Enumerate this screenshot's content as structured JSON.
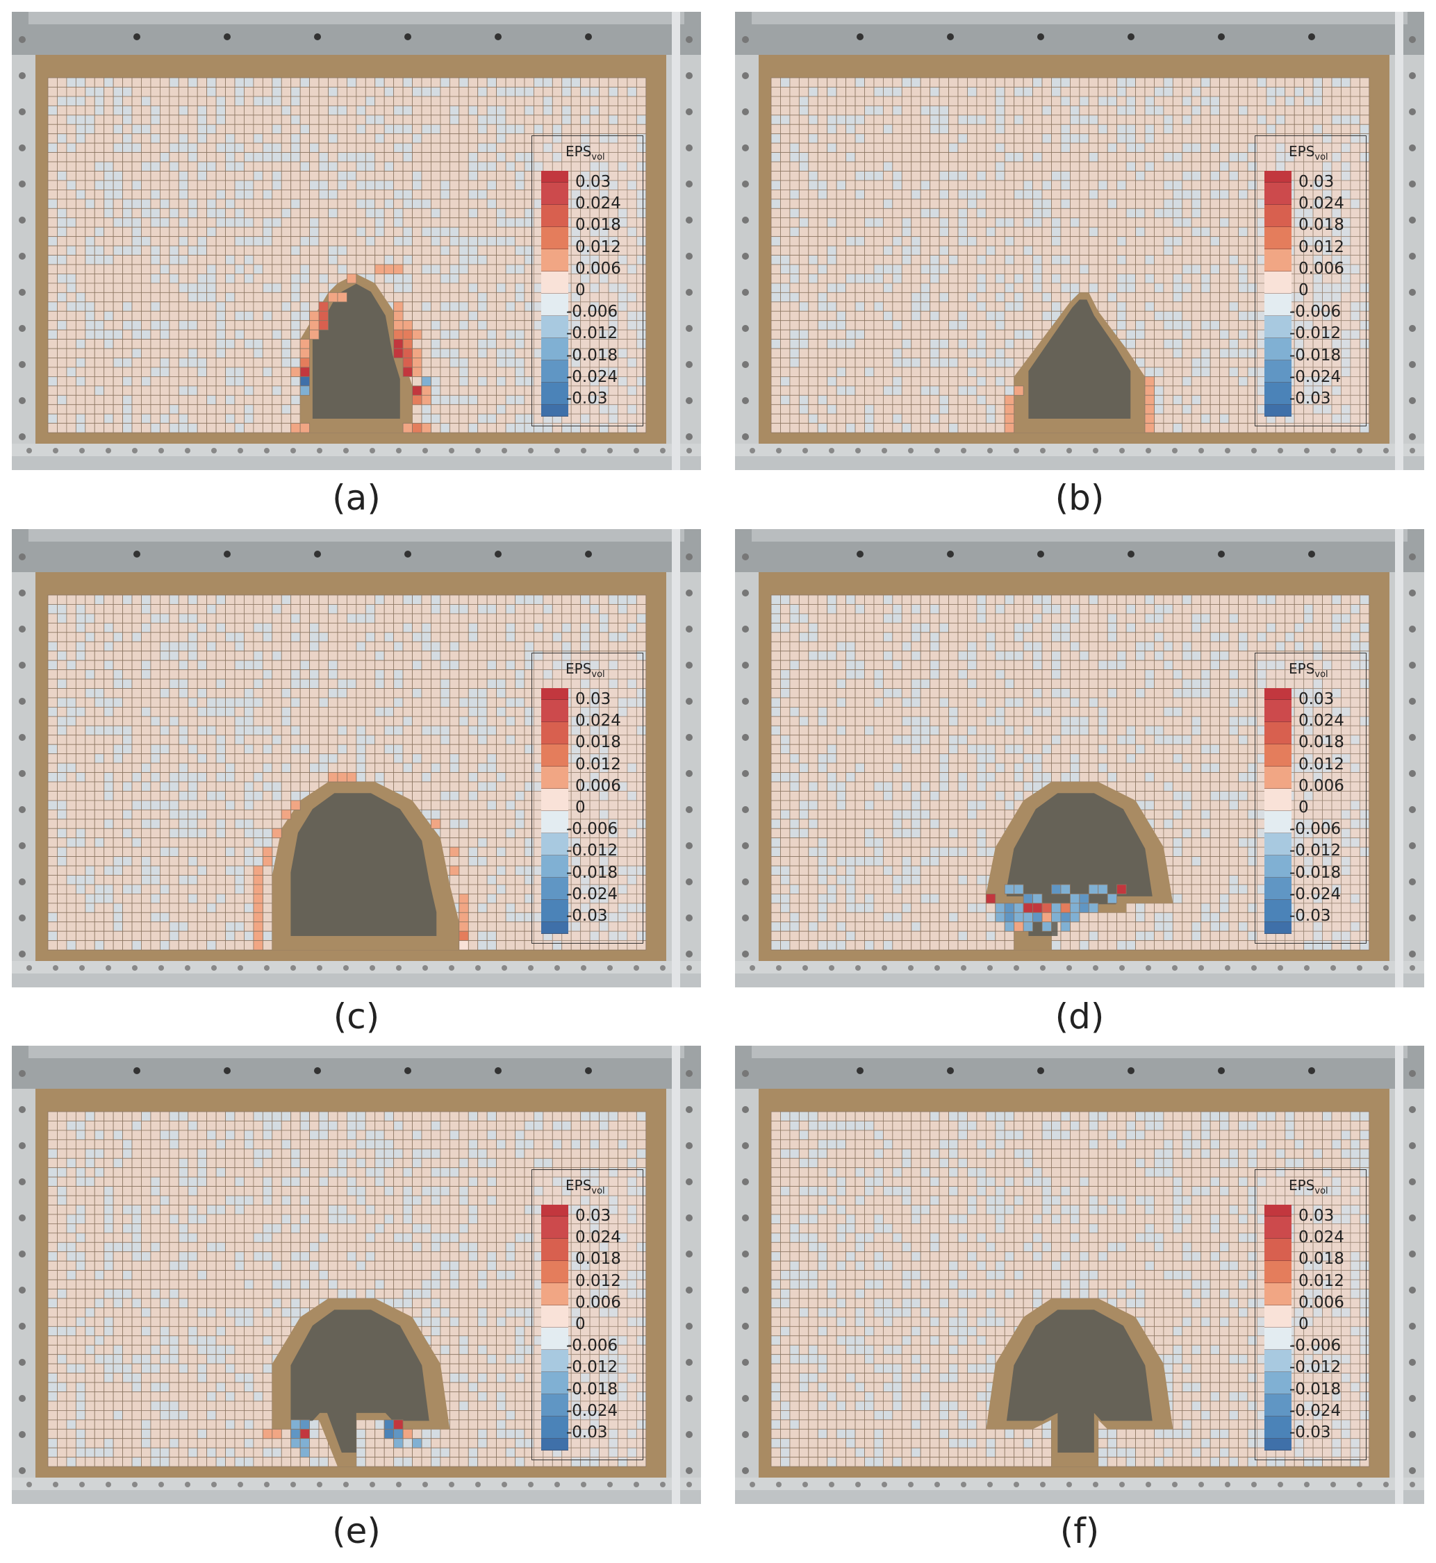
{
  "panels": [
    {
      "label": "(a)"
    },
    {
      "label": "(b)"
    },
    {
      "label": "(c)"
    },
    {
      "label": "(d)"
    },
    {
      "label": "(e)"
    },
    {
      "label": "(f)"
    }
  ],
  "legend": {
    "title": "EPS",
    "title_sub": "vol",
    "ticks": [
      "0.03",
      "0.024",
      "0.018",
      "0.012",
      "0.006",
      "0",
      "-0.006",
      "-0.012",
      "-0.018",
      "-0.024",
      "-0.03"
    ],
    "colors": [
      "#c2373e",
      "#cc4a4c",
      "#d8604f",
      "#e47d5c",
      "#f1a684",
      "#f9e2d8",
      "#e3ecf1",
      "#a8c9e0",
      "#80b0d3",
      "#6096c4",
      "#4b83b8",
      "#3f70a9"
    ]
  },
  "chart_data": {
    "type": "heatmap",
    "title": "",
    "colorbar": {
      "label": "EPS_vol",
      "ticks": [
        0.03,
        0.024,
        0.018,
        0.012,
        0.006,
        0,
        -0.006,
        -0.012,
        -0.018,
        -0.024,
        -0.03
      ],
      "range": [
        -0.03,
        0.03
      ]
    },
    "background_colors": {
      "positive_small": "#ead4c7",
      "negative_small": "#d4dce2",
      "sand": "#a98b63",
      "cavity": "#5b5a55"
    },
    "panels": [
      {
        "label": "(a)",
        "cells": [
          [
            35,
            20,
            0.012
          ],
          [
            36,
            20,
            0.012
          ],
          [
            37,
            20,
            0.012
          ],
          [
            32,
            21,
            0.012
          ],
          [
            30,
            23,
            0.012
          ],
          [
            31,
            23,
            0.012
          ],
          [
            29,
            24,
            0.024
          ],
          [
            29,
            25,
            0.024
          ],
          [
            28,
            25,
            0.012
          ],
          [
            29,
            26,
            0.024
          ],
          [
            28,
            26,
            0.012
          ],
          [
            28,
            27,
            0.012
          ],
          [
            27,
            28,
            0.012
          ],
          [
            27,
            29,
            0.012
          ],
          [
            27,
            30,
            0.018
          ],
          [
            27,
            31,
            0.03
          ],
          [
            26,
            31,
            0.012
          ],
          [
            27,
            32,
            -0.03
          ],
          [
            27,
            33,
            -0.012
          ],
          [
            37,
            24,
            0.012
          ],
          [
            37,
            25,
            0.012
          ],
          [
            37,
            26,
            0.012
          ],
          [
            38,
            26,
            0.012
          ],
          [
            37,
            27,
            0.018
          ],
          [
            38,
            27,
            0.018
          ],
          [
            39,
            27,
            0.012
          ],
          [
            37,
            28,
            0.03
          ],
          [
            38,
            28,
            0.018
          ],
          [
            37,
            29,
            0.03
          ],
          [
            38,
            29,
            0.024
          ],
          [
            39,
            29,
            0.012
          ],
          [
            38,
            30,
            0.024
          ],
          [
            39,
            30,
            0.012
          ],
          [
            38,
            31,
            0.03
          ],
          [
            39,
            31,
            0.012
          ],
          [
            40,
            32,
            -0.012
          ],
          [
            39,
            33,
            0.03
          ],
          [
            40,
            33,
            0.012
          ],
          [
            39,
            34,
            0.018
          ],
          [
            40,
            34,
            0.012
          ],
          [
            38,
            37,
            0.012
          ],
          [
            39,
            37,
            0.018
          ],
          [
            40,
            37,
            0.012
          ],
          [
            26,
            37,
            0.012
          ],
          [
            27,
            37,
            0.012
          ]
        ]
      },
      {
        "label": "(b)",
        "cells": [
          [
            25,
            34,
            0.012
          ],
          [
            25,
            35,
            0.012
          ],
          [
            25,
            36,
            0.012
          ],
          [
            25,
            37,
            0.012
          ],
          [
            26,
            33,
            0.012
          ],
          [
            40,
            32,
            0.012
          ],
          [
            40,
            33,
            0.012
          ],
          [
            40,
            34,
            0.012
          ],
          [
            40,
            35,
            0.012
          ],
          [
            40,
            36,
            0.012
          ],
          [
            40,
            37,
            0.012
          ]
        ]
      },
      {
        "label": "(c)",
        "cells": [
          [
            30,
            19,
            0.012
          ],
          [
            31,
            19,
            0.012
          ],
          [
            32,
            19,
            0.012
          ],
          [
            26,
            22,
            0.012
          ],
          [
            25,
            23,
            0.012
          ],
          [
            24,
            25,
            0.012
          ],
          [
            23,
            27,
            0.012
          ],
          [
            23,
            28,
            0.012
          ],
          [
            22,
            29,
            0.012
          ],
          [
            22,
            30,
            0.012
          ],
          [
            22,
            31,
            0.012
          ],
          [
            22,
            32,
            0.012
          ],
          [
            22,
            33,
            0.012
          ],
          [
            22,
            34,
            0.012
          ],
          [
            22,
            35,
            0.012
          ],
          [
            22,
            36,
            0.012
          ],
          [
            22,
            37,
            0.012
          ],
          [
            41,
            24,
            0.012
          ],
          [
            43,
            27,
            0.012
          ],
          [
            43,
            29,
            0.012
          ],
          [
            44,
            32,
            0.012
          ],
          [
            44,
            33,
            0.012
          ],
          [
            44,
            34,
            0.012
          ],
          [
            44,
            35,
            0.012
          ],
          [
            44,
            36,
            0.018
          ],
          [
            44,
            37,
            0.006
          ]
        ]
      },
      {
        "label": "(d)",
        "cells": [
          [
            23,
            32,
            0.03
          ],
          [
            25,
            31,
            -0.012
          ],
          [
            26,
            31,
            -0.012
          ],
          [
            27,
            32,
            -0.018
          ],
          [
            28,
            32,
            -0.012
          ],
          [
            30,
            31,
            -0.018
          ],
          [
            31,
            31,
            -0.012
          ],
          [
            32,
            32,
            -0.012
          ],
          [
            33,
            32,
            -0.018
          ],
          [
            34,
            31,
            -0.012
          ],
          [
            35,
            31,
            -0.012
          ],
          [
            36,
            32,
            -0.012
          ],
          [
            37,
            31,
            0.03
          ],
          [
            24,
            33,
            -0.012
          ],
          [
            25,
            33,
            -0.018
          ],
          [
            26,
            33,
            -0.012
          ],
          [
            27,
            33,
            0.03
          ],
          [
            28,
            33,
            0.03
          ],
          [
            29,
            33,
            0.024
          ],
          [
            30,
            33,
            -0.012
          ],
          [
            31,
            33,
            0.018
          ],
          [
            32,
            33,
            -0.012
          ],
          [
            33,
            33,
            -0.018
          ],
          [
            34,
            33,
            -0.012
          ],
          [
            24,
            34,
            -0.012
          ],
          [
            25,
            34,
            -0.018
          ],
          [
            26,
            34,
            -0.012
          ],
          [
            27,
            34,
            -0.012
          ],
          [
            28,
            34,
            -0.018
          ],
          [
            29,
            34,
            0.012
          ],
          [
            30,
            34,
            -0.012
          ],
          [
            31,
            34,
            -0.018
          ],
          [
            32,
            34,
            -0.012
          ],
          [
            25,
            35,
            -0.012
          ],
          [
            26,
            35,
            0.012
          ],
          [
            27,
            35,
            -0.012
          ],
          [
            29,
            35,
            -0.012
          ],
          [
            31,
            35,
            -0.012
          ]
        ]
      },
      {
        "label": "(e)",
        "cells": [
          [
            23,
            34,
            0.012
          ],
          [
            24,
            34,
            0.012
          ],
          [
            26,
            33,
            -0.012
          ],
          [
            26,
            34,
            -0.018
          ],
          [
            27,
            33,
            -0.018
          ],
          [
            27,
            34,
            0.03
          ],
          [
            26,
            35,
            -0.012
          ],
          [
            27,
            35,
            -0.012
          ],
          [
            27,
            36,
            -0.012
          ],
          [
            36,
            33,
            -0.024
          ],
          [
            37,
            33,
            0.03
          ],
          [
            36,
            34,
            -0.024
          ],
          [
            37,
            34,
            -0.018
          ],
          [
            38,
            34,
            0.012
          ],
          [
            37,
            35,
            -0.012
          ],
          [
            39,
            35,
            -0.012
          ]
        ]
      },
      {
        "label": "(f)",
        "cells": []
      }
    ]
  }
}
